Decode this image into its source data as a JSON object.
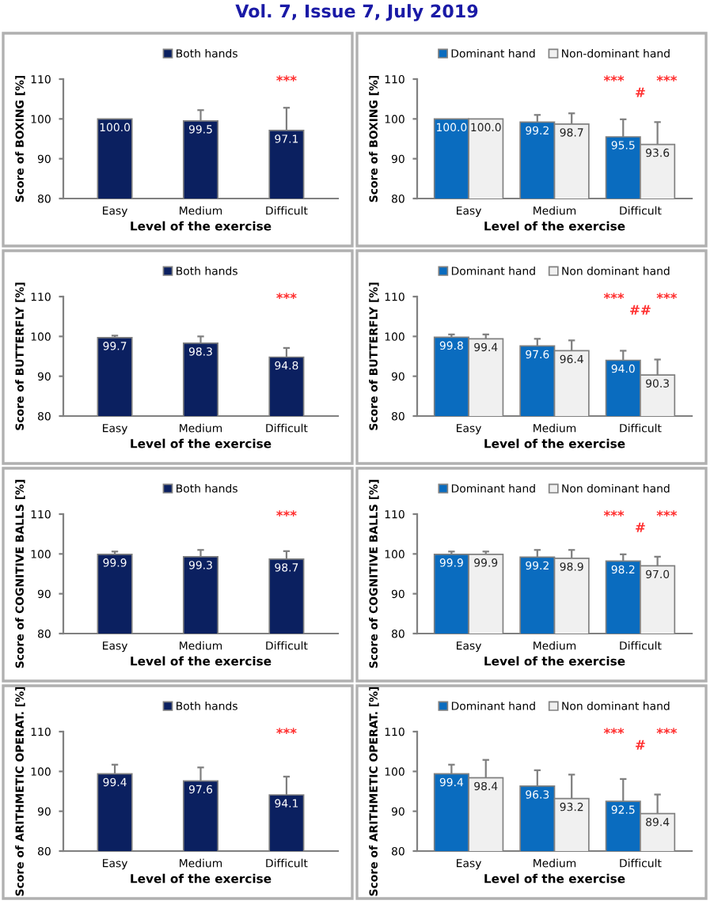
{
  "chart_data": [
    {
      "type": "bar",
      "annotations": [
        "Vol. 7, Issue 7, July 2019",
        "***"
      ],
      "xlabel": "Level of the exercise",
      "ylabel": "Score of BOXING [%]",
      "categories": [
        "Easy",
        "Medium",
        "Difficult"
      ],
      "ylim": [
        80,
        110
      ],
      "yticks": [
        80,
        90,
        100,
        110
      ],
      "legend": "top",
      "series": [
        {
          "name": "Both hands",
          "color": "#0b2060",
          "values": [
            100.0,
            99.5,
            97.1
          ],
          "value_labels": [
            "100.0",
            "99.5",
            "97.1"
          ],
          "errors": [
            null,
            2.7,
            5.7
          ]
        }
      ]
    },
    {
      "type": "bar",
      "annotations": [
        "***       ***",
        "#"
      ],
      "xlabel": "Level of the exercise",
      "ylabel": "Score of BOXING [%]",
      "categories": [
        "Easy",
        "Medium",
        "Difficult"
      ],
      "ylim": [
        80,
        110
      ],
      "yticks": [
        80,
        90,
        100,
        110
      ],
      "legend": "top",
      "series": [
        {
          "name": "Dominant hand",
          "color": "#0a6cbf",
          "values": [
            100.0,
            99.2,
            95.5
          ],
          "value_labels": [
            "100.0",
            "99.2",
            "95.5"
          ],
          "errors": [
            null,
            1.8,
            4.4
          ]
        },
        {
          "name": "Non-dominant hand",
          "color": "#f0f0f0",
          "values": [
            100.0,
            98.7,
            93.6
          ],
          "value_labels": [
            "100.0",
            "98.7",
            "93.6"
          ],
          "errors": [
            null,
            2.7,
            5.6
          ]
        }
      ]
    },
    {
      "type": "bar",
      "annotations": [
        "***"
      ],
      "xlabel": "Level of the exercise",
      "ylabel": "Score of BUTTERFLY [%]",
      "categories": [
        "Easy",
        "Medium",
        "Difficult"
      ],
      "ylim": [
        80,
        110
      ],
      "yticks": [
        80,
        90,
        100,
        110
      ],
      "legend": "top",
      "series": [
        {
          "name": "Both hands",
          "color": "#0b2060",
          "values": [
            99.7,
            98.3,
            94.8
          ],
          "value_labels": [
            "99.7",
            "98.3",
            "94.8"
          ],
          "errors": [
            0.5,
            1.7,
            2.3
          ]
        }
      ]
    },
    {
      "type": "bar",
      "annotations": [
        "***       ***",
        "##"
      ],
      "xlabel": "Level of the exercise",
      "ylabel": "Score of BUTTERFLY [%]",
      "categories": [
        "Easy",
        "Medium",
        "Difficult"
      ],
      "ylim": [
        80,
        110
      ],
      "yticks": [
        80,
        90,
        100,
        110
      ],
      "legend": "top",
      "series": [
        {
          "name": "Dominant hand",
          "color": "#0a6cbf",
          "values": [
            99.8,
            97.6,
            94.0
          ],
          "value_labels": [
            "99.8",
            "97.6",
            "94.0"
          ],
          "errors": [
            0.7,
            1.8,
            2.4
          ]
        },
        {
          "name": "Non dominant hand",
          "color": "#f0f0f0",
          "values": [
            99.4,
            96.4,
            90.3
          ],
          "value_labels": [
            "99.4",
            "96.4",
            "90.3"
          ],
          "errors": [
            1.1,
            2.6,
            3.9
          ]
        }
      ]
    },
    {
      "type": "bar",
      "annotations": [
        "***"
      ],
      "xlabel": "Level of the exercise",
      "ylabel": "Score of COGNITIVE BALLS [%]",
      "categories": [
        "Easy",
        "Medium",
        "Difficult"
      ],
      "ylim": [
        80,
        110
      ],
      "yticks": [
        80,
        90,
        100,
        110
      ],
      "legend": "top",
      "series": [
        {
          "name": "Both hands",
          "color": "#0b2060",
          "values": [
            99.9,
            99.3,
            98.7
          ],
          "value_labels": [
            "99.9",
            "99.3",
            "98.7"
          ],
          "errors": [
            0.7,
            1.7,
            2.0
          ]
        }
      ]
    },
    {
      "type": "bar",
      "annotations": [
        "***       ***",
        "#"
      ],
      "xlabel": "Level of the exercise",
      "ylabel": "Score of COGNITIVE BALLS [%]",
      "categories": [
        "Easy",
        "Medium",
        "Difficult"
      ],
      "ylim": [
        80,
        110
      ],
      "yticks": [
        80,
        90,
        100,
        110
      ],
      "legend": "top",
      "series": [
        {
          "name": "Dominant hand",
          "color": "#0a6cbf",
          "values": [
            99.9,
            99.2,
            98.2
          ],
          "value_labels": [
            "99.9",
            "99.2",
            "98.2"
          ],
          "errors": [
            0.7,
            1.8,
            1.7
          ]
        },
        {
          "name": "Non dominant hand",
          "color": "#f0f0f0",
          "values": [
            99.9,
            98.9,
            97.0
          ],
          "value_labels": [
            "99.9",
            "98.9",
            "97.0"
          ],
          "errors": [
            0.7,
            2.1,
            2.3
          ]
        }
      ]
    },
    {
      "type": "bar",
      "annotations": [
        "***"
      ],
      "xlabel": "Level of the exercise",
      "ylabel": "Score of ARITHMETIC OPERAT. [%]",
      "categories": [
        "Easy",
        "Medium",
        "Difficult"
      ],
      "ylim": [
        80,
        110
      ],
      "yticks": [
        80,
        90,
        100,
        110
      ],
      "legend": "top",
      "series": [
        {
          "name": "Both hands",
          "color": "#0b2060",
          "values": [
            99.4,
            97.6,
            94.1
          ],
          "value_labels": [
            "99.4",
            "97.6",
            "94.1"
          ],
          "errors": [
            2.3,
            3.4,
            4.6
          ]
        }
      ]
    },
    {
      "type": "bar",
      "annotations": [
        "***       ***",
        "#"
      ],
      "xlabel": "Level of the exercise",
      "ylabel": "Score of ARITHMETIC OPERAT. [%]",
      "categories": [
        "Easy",
        "Medium",
        "Difficult"
      ],
      "ylim": [
        80,
        110
      ],
      "yticks": [
        80,
        90,
        100,
        110
      ],
      "legend": "top",
      "series": [
        {
          "name": "Dominant hand",
          "color": "#0a6cbf",
          "values": [
            99.4,
            96.3,
            92.5
          ],
          "value_labels": [
            "99.4",
            "96.3",
            "92.5"
          ],
          "errors": [
            2.3,
            4.0,
            5.6
          ]
        },
        {
          "name": "Non dominant hand",
          "color": "#f0f0f0",
          "values": [
            98.4,
            93.2,
            89.4
          ],
          "value_labels": [
            "98.4",
            "93.2",
            "89.4"
          ],
          "errors": [
            4.5,
            6.0,
            4.8
          ]
        }
      ]
    }
  ]
}
